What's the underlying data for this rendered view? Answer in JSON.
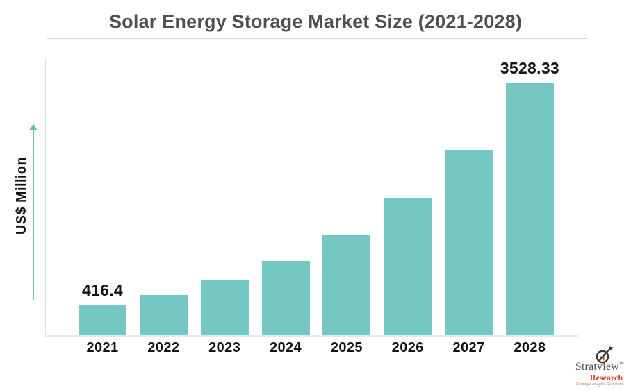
{
  "header": {
    "title": "Solar Energy Storage Market Size (2021-2028)"
  },
  "y_axis": {
    "label": "US$ Million"
  },
  "chart_data": {
    "type": "bar",
    "title": "Solar Energy Storage Market Size (2021-2028)",
    "categories": [
      "2021",
      "2022",
      "2023",
      "2024",
      "2025",
      "2026",
      "2027",
      "2028"
    ],
    "values": [
      416.4,
      565,
      767,
      1040,
      1411,
      1915,
      2599,
      3528.33
    ],
    "value_labels": [
      "416.4",
      "",
      "",
      "",
      "",
      "",
      "",
      "3528.33"
    ],
    "xlabel": "",
    "ylabel": "US$ Million",
    "ylim": [
      0,
      3700
    ],
    "grid": false,
    "legend": "none",
    "bar_color": "#74c7c2"
  },
  "branding": {
    "name": "Stratview",
    "tm": "™",
    "division": "Research",
    "tagline": "Strategic Insights Delivered"
  },
  "colors": {
    "bar": "#74c7c2",
    "arrow": "#65c0bb",
    "title_text": "#4f4f4f",
    "axis_line": "#d9eeee",
    "label_text": "#141414",
    "division_red": "#da3b26"
  }
}
